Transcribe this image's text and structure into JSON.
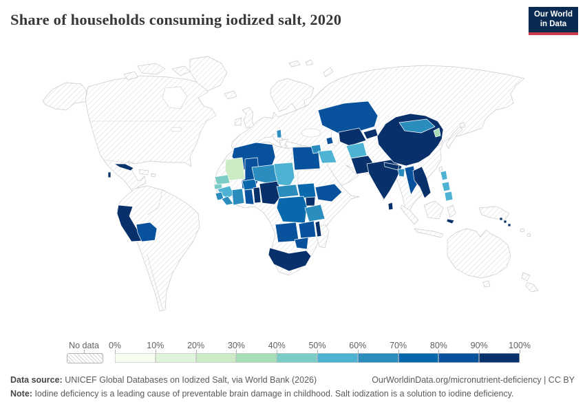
{
  "header": {
    "title": "Share of households consuming iodized salt, 2020",
    "logo_line1": "Our World",
    "logo_line2": "in Data"
  },
  "legend": {
    "no_data_label": "No data",
    "tick_labels": [
      "0%",
      "10%",
      "20%",
      "30%",
      "40%",
      "50%",
      "60%",
      "70%",
      "80%",
      "90%",
      "100%"
    ],
    "palette": [
      "#f7fcf0",
      "#e0f3db",
      "#ccebc5",
      "#a8ddb5",
      "#7bccc4",
      "#4eb3d3",
      "#2b8cbe",
      "#0868ac",
      "#08519c",
      "#08306b"
    ]
  },
  "footer": {
    "source_label": "Data source:",
    "source_text": "UNICEF Global Databases on Iodized Salt, via World Bank (2026)",
    "attribution": "OurWorldinData.org/micronutrient-deficiency | CC BY",
    "note_label": "Note:",
    "note_text": "Iodine deficiency is a leading cause of preventable brain damage in childhood. Salt iodization is a solution to iodine deficiency."
  },
  "chart_data": {
    "type": "heatmap",
    "subtype": "choropleth-world-map",
    "title": "Share of households consuming iodized salt, 2020",
    "unit": "%",
    "axis_range": [
      0,
      100
    ],
    "bin_width": 10,
    "no_data": {
      "label": "No data",
      "style": "diagonal-hatch"
    },
    "bins": [
      {
        "range": "0-10%",
        "color": "#f7fcf0"
      },
      {
        "range": "10-20%",
        "color": "#e0f3db"
      },
      {
        "range": "20-30%",
        "color": "#ccebc5"
      },
      {
        "range": "30-40%",
        "color": "#a8ddb5"
      },
      {
        "range": "40-50%",
        "color": "#7bccc4"
      },
      {
        "range": "50-60%",
        "color": "#4eb3d3"
      },
      {
        "range": "60-70%",
        "color": "#2b8cbe"
      },
      {
        "range": "70-80%",
        "color": "#0868ac"
      },
      {
        "range": "80-90%",
        "color": "#08519c"
      },
      {
        "range": "90-100%",
        "color": "#08306b"
      }
    ],
    "countries": {
      "cuba": {
        "label": "Cuba",
        "bin": 9,
        "value_range": "90-100%"
      },
      "belize": {
        "label": "Belize",
        "bin": 9,
        "value_range": "90-100%"
      },
      "peru": {
        "label": "Peru",
        "bin": 9,
        "value_range": "90-100%"
      },
      "bolivia": {
        "label": "Bolivia",
        "bin": 8,
        "value_range": "80-90%"
      },
      "mauritania": {
        "label": "Mauritania",
        "bin": 2,
        "value_range": "20-30%"
      },
      "senegal": {
        "label": "Senegal",
        "bin": 4,
        "value_range": "40-50%"
      },
      "guinea-bissau": {
        "label": "Guinea-Bissau",
        "bin": 4,
        "value_range": "40-50%"
      },
      "guinea": {
        "label": "Guinea",
        "bin": 5,
        "value_range": "50-60%"
      },
      "sierra-leone": {
        "label": "Sierra Leone",
        "bin": 6,
        "value_range": "60-70%"
      },
      "liberia": {
        "label": "Liberia",
        "bin": 6,
        "value_range": "60-70%"
      },
      "mali": {
        "label": "Mali",
        "bin": 8,
        "value_range": "80-90%"
      },
      "burkina-faso": {
        "label": "Burkina Faso",
        "bin": 7,
        "value_range": "70-80%"
      },
      "cote-divoire": {
        "label": "Cote d'Ivoire",
        "bin": 6,
        "value_range": "60-70%"
      },
      "ghana": {
        "label": "Ghana",
        "bin": 8,
        "value_range": "80-90%"
      },
      "togo-benin": {
        "label": "Togo and Benin",
        "bin": 9,
        "value_range": "90-100%"
      },
      "niger": {
        "label": "Niger",
        "bin": 6,
        "value_range": "60-70%"
      },
      "nigeria": {
        "label": "Nigeria",
        "bin": 9,
        "value_range": "90-100%"
      },
      "chad": {
        "label": "Chad",
        "bin": 5,
        "value_range": "50-60%"
      },
      "central-african-republic": {
        "label": "Central African Republic",
        "bin": 6,
        "value_range": "60-70%"
      },
      "south-sudan": {
        "label": "South Sudan",
        "bin": 7,
        "value_range": "70-80%"
      },
      "egypt": {
        "label": "Egypt",
        "bin": 8,
        "value_range": "80-90%"
      },
      "algeria": {
        "label": "Algeria",
        "bin": 8,
        "value_range": "80-90%"
      },
      "ethiopia": {
        "label": "Ethiopia",
        "bin": 8,
        "value_range": "80-90%"
      },
      "uganda": {
        "label": "Uganda",
        "bin": 9,
        "value_range": "90-100%"
      },
      "dr-congo": {
        "label": "Democratic Republic of Congo",
        "bin": 7,
        "value_range": "70-80%"
      },
      "tanzania": {
        "label": "Tanzania",
        "bin": 6,
        "value_range": "60-70%"
      },
      "angola": {
        "label": "Angola",
        "bin": 8,
        "value_range": "80-90%"
      },
      "zambia": {
        "label": "Zambia",
        "bin": 8,
        "value_range": "80-90%"
      },
      "malawi": {
        "label": "Malawi",
        "bin": 9,
        "value_range": "90-100%"
      },
      "zimbabwe": {
        "label": "Zimbabwe",
        "bin": 8,
        "value_range": "80-90%"
      },
      "south-africa": {
        "label": "South Africa",
        "bin": 9,
        "value_range": "90-100%"
      },
      "albania": {
        "label": "Albania",
        "bin": 6,
        "value_range": "60-70%"
      },
      "syria": {
        "label": "Syria",
        "bin": 6,
        "value_range": "60-70%"
      },
      "iraq": {
        "label": "Iraq",
        "bin": 5,
        "value_range": "50-60%"
      },
      "azerbaijan": {
        "label": "Azerbaijan",
        "bin": 8,
        "value_range": "80-90%"
      },
      "kazakhstan": {
        "label": "Kazakhstan",
        "bin": 8,
        "value_range": "80-90%"
      },
      "uzbekistan-turkmenistan": {
        "label": "Uzbekistan and Turkmenistan",
        "bin": 9,
        "value_range": "90-100%"
      },
      "kyrgyzstan-tajikistan": {
        "label": "Kyrgyzstan and Tajikistan",
        "bin": 9,
        "value_range": "90-100%"
      },
      "afghanistan": {
        "label": "Afghanistan",
        "bin": 5,
        "value_range": "50-60%"
      },
      "pakistan": {
        "label": "Pakistan",
        "bin": 9,
        "value_range": "90-100%"
      },
      "india": {
        "label": "India",
        "bin": 9,
        "value_range": "90-100%"
      },
      "sri-lanka": {
        "label": "Sri Lanka",
        "bin": 9,
        "value_range": "90-100%"
      },
      "nepal-bhutan": {
        "label": "Nepal and Bhutan",
        "bin": 9,
        "value_range": "90-100%"
      },
      "bangladesh": {
        "label": "Bangladesh",
        "bin": 6,
        "value_range": "60-70%"
      },
      "myanmar": {
        "label": "Myanmar",
        "bin": 8,
        "value_range": "80-90%"
      },
      "china": {
        "label": "China",
        "bin": 9,
        "value_range": "90-100%"
      },
      "mongolia": {
        "label": "Mongolia",
        "bin": 6,
        "value_range": "60-70%"
      },
      "north-korea": {
        "label": "North Korea",
        "bin": 3,
        "value_range": "30-40%"
      },
      "indochina": {
        "label": "Vietnam, Laos and Cambodia",
        "bin": 9,
        "value_range": "90-100%"
      },
      "philippines": {
        "label": "Philippines",
        "bin": 5,
        "value_range": "50-60%"
      },
      "timor-leste": {
        "label": "Timor-Leste",
        "bin": 9,
        "value_range": "90-100%"
      },
      "solomon-islands": {
        "label": "Solomon Islands",
        "bin": 9,
        "value_range": "90-100%"
      }
    }
  }
}
